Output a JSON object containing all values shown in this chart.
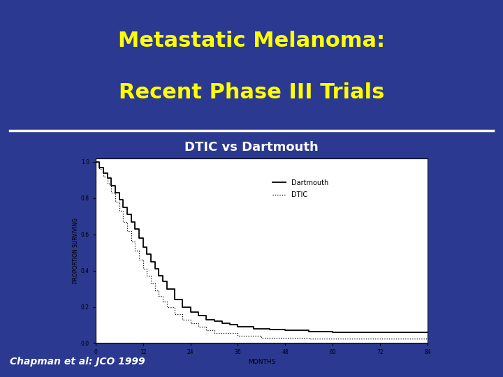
{
  "title_line1": "Metastatic Melanoma:",
  "title_line2": "Recent Phase III Trials",
  "subtitle": "DTIC vs Dartmouth",
  "citation": "Chapman et al: JCO 1999",
  "title_color": "#FFFF00",
  "subtitle_color": "#FFFFFF",
  "citation_color": "#FFFFFF",
  "slide_bg": "#2b3990",
  "plot_bg": "#ffffff",
  "divider_color": "#ffffff",
  "ylabel": "PROPORTION SURVIVING",
  "xlabel": "MONTHS",
  "ytick_labels": [
    "0.0",
    "0.2",
    "0.4",
    "0.6",
    "0.8",
    "1.0"
  ],
  "yticks": [
    0.0,
    0.2,
    0.4,
    0.6,
    0.8,
    1.0
  ],
  "xticks": [
    0,
    12,
    24,
    36,
    48,
    60,
    72,
    84
  ],
  "dartmouth_x": [
    0,
    1,
    2,
    3,
    4,
    5,
    6,
    7,
    8,
    9,
    10,
    11,
    12,
    13,
    14,
    15,
    16,
    17,
    18,
    20,
    22,
    24,
    26,
    28,
    30,
    32,
    34,
    36,
    40,
    44,
    48,
    54,
    60,
    72,
    84
  ],
  "dartmouth_y": [
    1.0,
    0.97,
    0.94,
    0.91,
    0.87,
    0.83,
    0.79,
    0.75,
    0.71,
    0.67,
    0.63,
    0.58,
    0.53,
    0.49,
    0.45,
    0.41,
    0.37,
    0.34,
    0.3,
    0.24,
    0.2,
    0.17,
    0.15,
    0.13,
    0.12,
    0.11,
    0.1,
    0.09,
    0.08,
    0.075,
    0.07,
    0.065,
    0.06,
    0.06,
    0.06
  ],
  "dtic_x": [
    0,
    1,
    2,
    3,
    4,
    5,
    6,
    7,
    8,
    9,
    10,
    11,
    12,
    13,
    14,
    15,
    16,
    17,
    18,
    20,
    22,
    24,
    26,
    28,
    30,
    36,
    42,
    48,
    54,
    60,
    72,
    84
  ],
  "dtic_y": [
    1.0,
    0.96,
    0.92,
    0.88,
    0.83,
    0.78,
    0.73,
    0.67,
    0.62,
    0.56,
    0.51,
    0.46,
    0.41,
    0.37,
    0.33,
    0.29,
    0.26,
    0.23,
    0.2,
    0.16,
    0.13,
    0.11,
    0.09,
    0.07,
    0.055,
    0.04,
    0.03,
    0.03,
    0.025,
    0.025,
    0.025,
    0.025
  ],
  "dartmouth_color": "#000000",
  "dtic_color": "#000000",
  "legend_dartmouth": "Dartmouth",
  "legend_dtic": "DTIC",
  "title_fontsize": 22,
  "subtitle_fontsize": 13,
  "citation_fontsize": 10
}
